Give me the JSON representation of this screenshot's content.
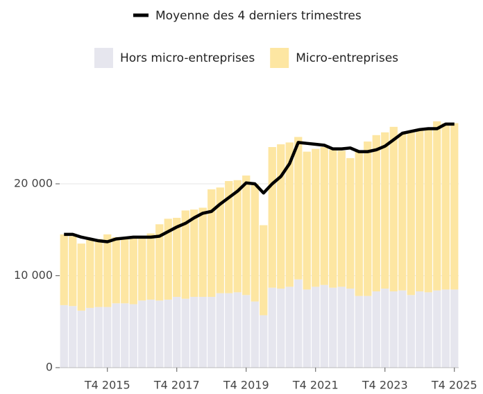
{
  "chart_data": {
    "type": "bar",
    "categories": [
      null,
      null,
      null,
      null,
      null,
      "T4 2015",
      null,
      null,
      null,
      null,
      null,
      null,
      null,
      "T4 2017",
      null,
      null,
      null,
      null,
      null,
      null,
      null,
      "T4 2019",
      null,
      null,
      null,
      null,
      null,
      null,
      null,
      "T4 2021",
      null,
      null,
      null,
      null,
      null,
      null,
      null,
      "T4 2023",
      null,
      null,
      null,
      null,
      null,
      null,
      null,
      "T4 2025"
    ],
    "series": [
      {
        "name": "Hors micro-entreprises",
        "color": "#e6e6ee",
        "values": [
          6800,
          6700,
          6200,
          6500,
          6600,
          6600,
          7000,
          7000,
          6900,
          7300,
          7400,
          7300,
          7400,
          7700,
          7500,
          7700,
          7700,
          7700,
          8100,
          8100,
          8200,
          7900,
          7200,
          5700,
          8700,
          8600,
          8800,
          9600,
          8500,
          8800,
          9000,
          8700,
          8800,
          8600,
          7800,
          7800,
          8300,
          8600,
          8300,
          8400,
          7900,
          8300,
          8200,
          8400,
          8500,
          8500
        ]
      },
      {
        "name": "Micro-entreprises",
        "color": "#fde6a2",
        "values": [
          7700,
          7600,
          7300,
          7400,
          7400,
          7900,
          7200,
          7000,
          7400,
          6900,
          7200,
          8300,
          8800,
          8600,
          9600,
          9500,
          9700,
          11700,
          11500,
          12200,
          12200,
          13000,
          12800,
          9800,
          15300,
          15700,
          15700,
          15500,
          15000,
          15000,
          15000,
          15000,
          14800,
          14200,
          15700,
          16800,
          17000,
          17000,
          17900,
          17100,
          17700,
          17700,
          17900,
          18400,
          18100,
          18100
        ]
      },
      {
        "name": "Moyenne des 4 derniers trimestres",
        "color": "#000000",
        "type": "line",
        "values": [
          14500,
          14500,
          14200,
          14000,
          13800,
          13700,
          14000,
          14100,
          14200,
          14200,
          14200,
          14300,
          14800,
          15300,
          15700,
          16300,
          16800,
          17000,
          17800,
          18500,
          19200,
          20100,
          20000,
          19000,
          20000,
          20800,
          22200,
          24500,
          24400,
          24300,
          24200,
          23800,
          23800,
          23900,
          23500,
          23500,
          23700,
          24100,
          24800,
          25500,
          25700,
          25900,
          26000,
          26000,
          26500,
          26500
        ]
      }
    ],
    "stacked": true,
    "ylim": [
      0,
      28000
    ],
    "yticks": [
      0,
      {
        "value": 10000,
        "label": "10 000"
      },
      {
        "value": 20000,
        "label": "20 000"
      }
    ],
    "grid": true
  }
}
